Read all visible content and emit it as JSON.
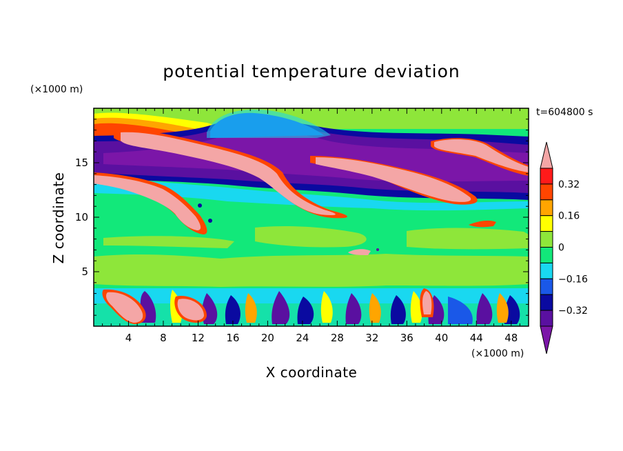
{
  "chart_data": {
    "type": "heatmap",
    "title": "potential temperature deviation",
    "xlabel": "X coordinate",
    "ylabel": "Z coordinate",
    "x_unit": "(×1000 m)",
    "z_unit": "(×1000 m)",
    "time_label": "t=604800 s",
    "xlim": [
      0,
      50
    ],
    "zlim": [
      0,
      20
    ],
    "x_ticks": [
      4,
      8,
      12,
      16,
      20,
      24,
      28,
      32,
      36,
      40,
      44,
      48
    ],
    "z_ticks": [
      5,
      10,
      15
    ],
    "colorbar": {
      "levels": [
        -0.4,
        -0.32,
        -0.24,
        -0.16,
        -0.08,
        0,
        0.08,
        0.16,
        0.24,
        0.32,
        0.4
      ],
      "labels": [
        "0.32",
        "0.16",
        "0",
        "-0.16",
        "-0.32"
      ],
      "colors": [
        "#7b16a8",
        "#5a10a0",
        "#0a0aa0",
        "#1a58e8",
        "#19d8f0",
        "#12e87a",
        "#8ee63a",
        "#ffff00",
        "#ffa500",
        "#ff4500",
        "#ff1a1a",
        "#f4a6a6"
      ]
    },
    "colors": {
      "background_field": "#12e87a",
      "neg_strong": "#7b16a8",
      "pos_strong": "#f4a6a6"
    }
  }
}
